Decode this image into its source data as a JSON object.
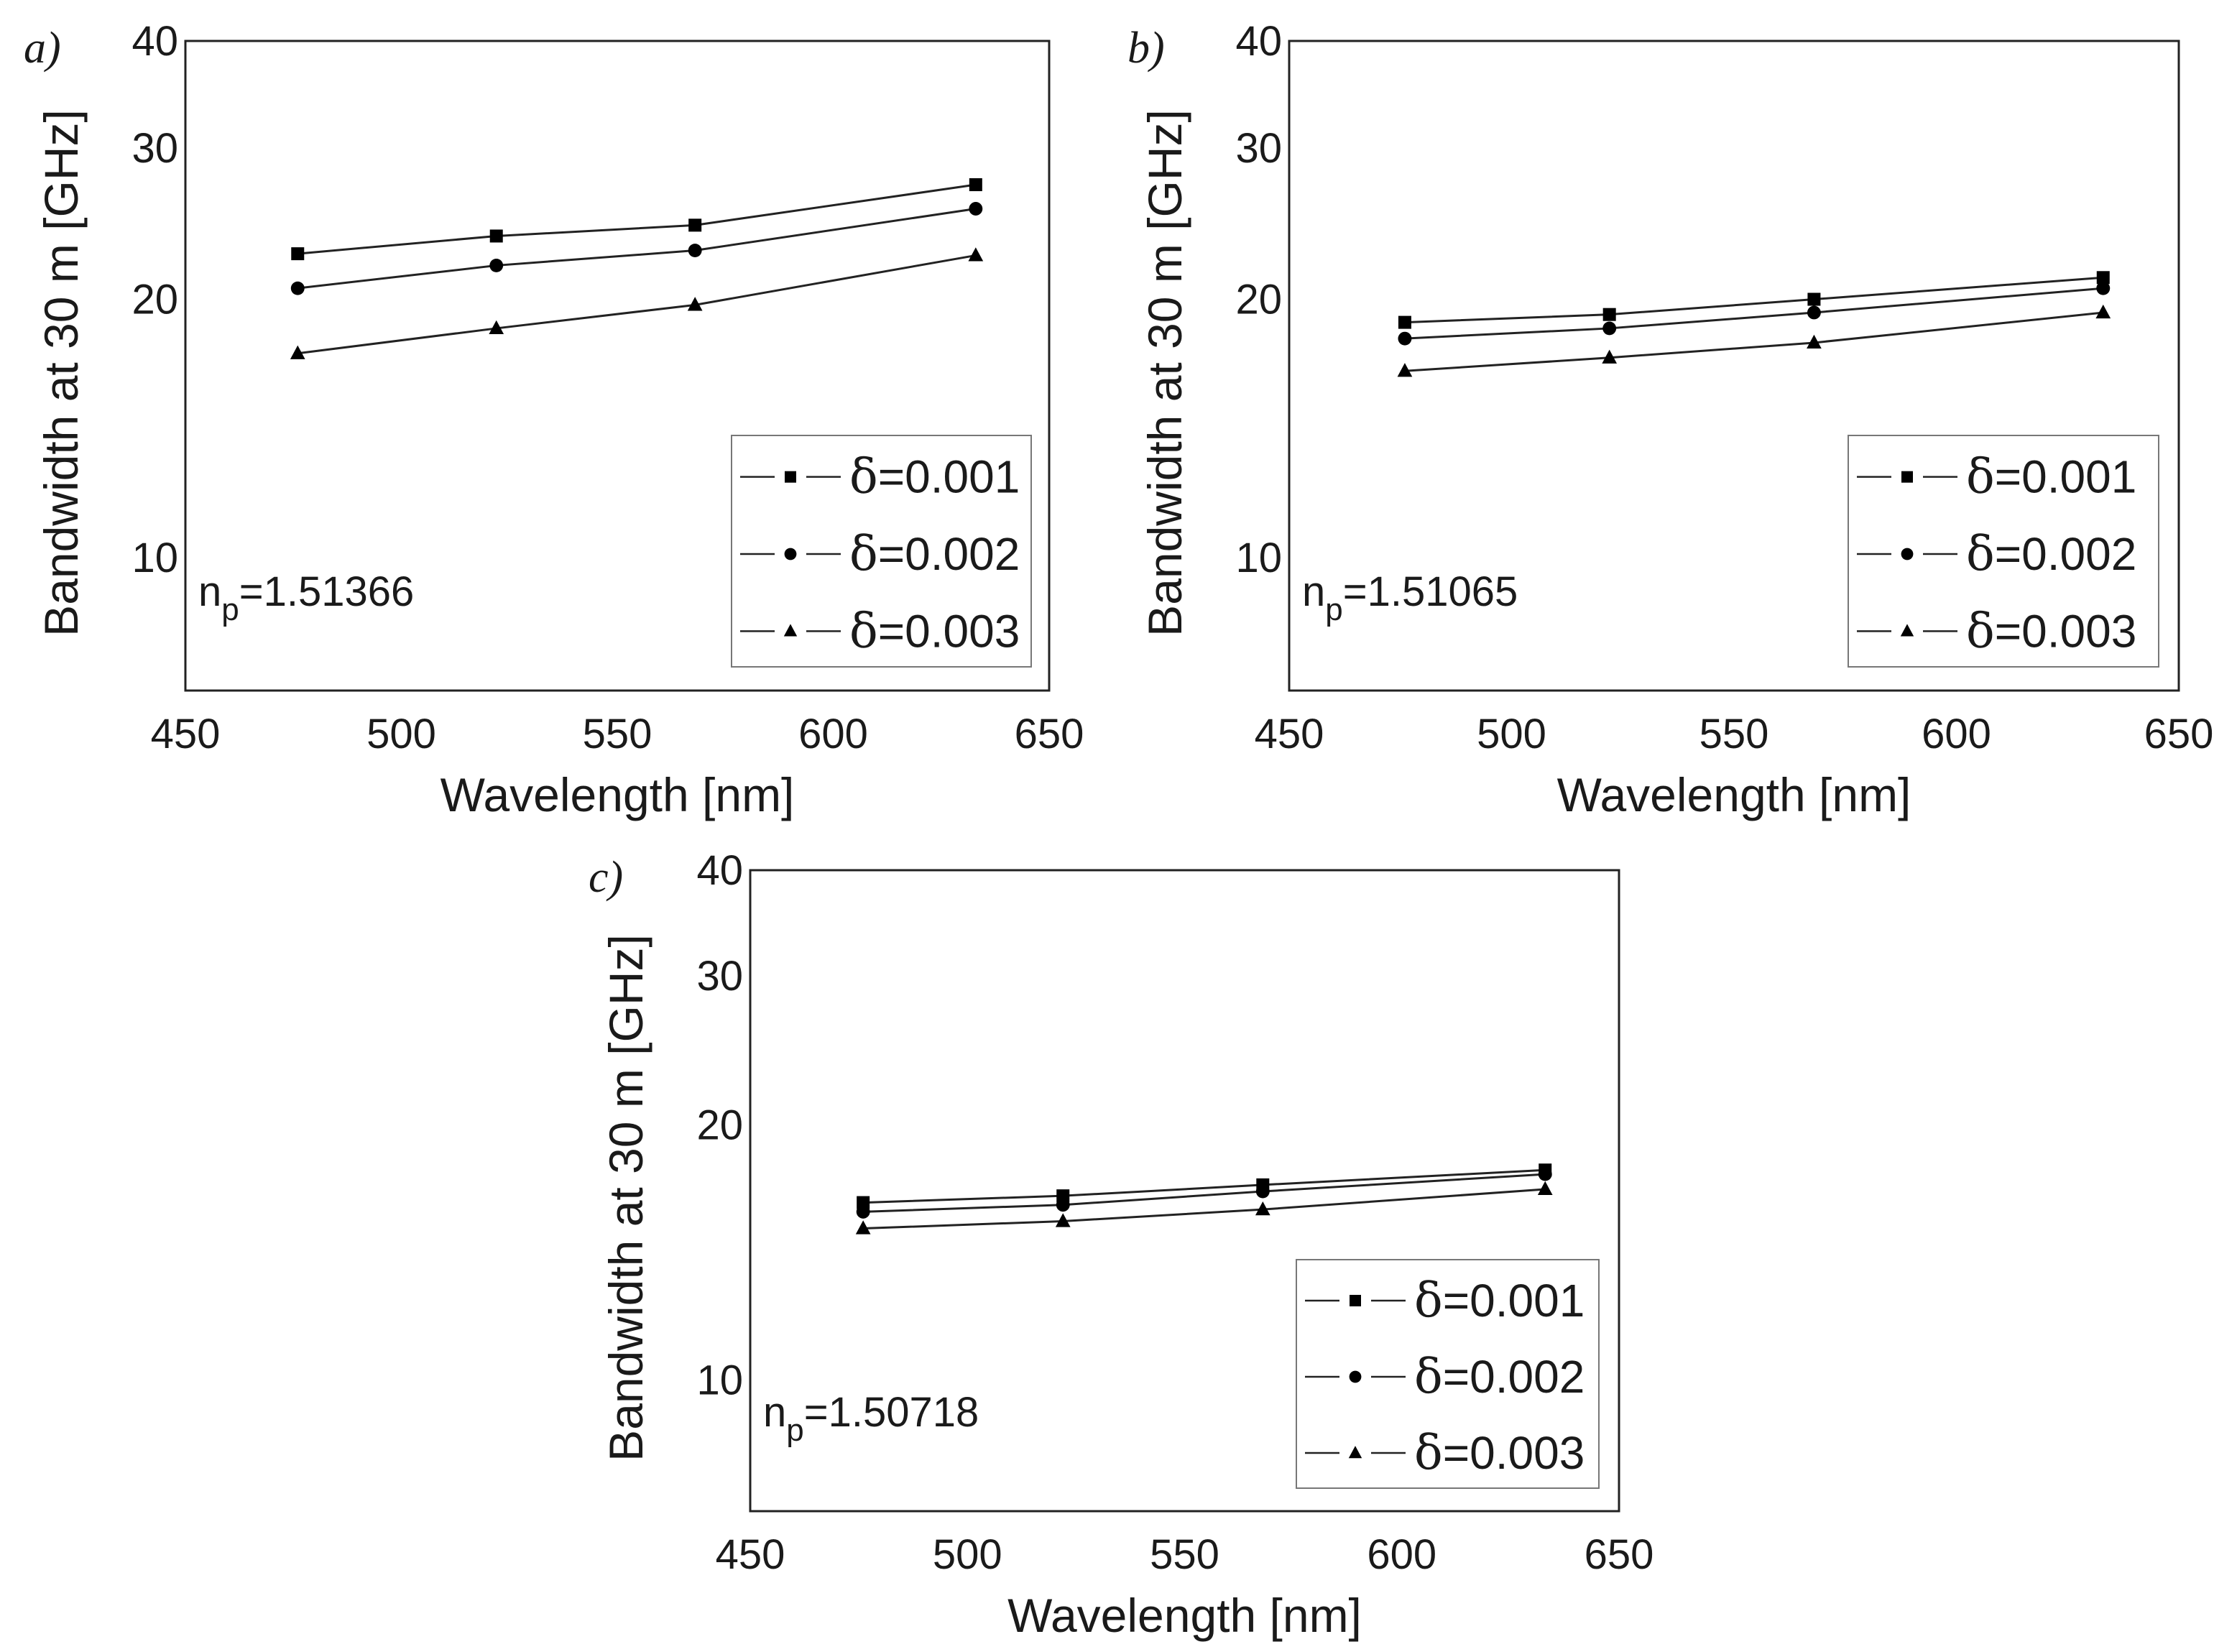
{
  "chart_data": [
    {
      "type": "line",
      "panel_label": "a)",
      "xlabel": "Wavelength [nm]",
      "ylabel": "Bandwidth at 30 m [GHz]",
      "xlim": [
        450,
        650
      ],
      "ylim": [
        7,
        40
      ],
      "yscale": "log",
      "x_ticks": [
        "450",
        "500",
        "550",
        "600",
        "650"
      ],
      "y_ticks": [
        "10",
        "20",
        "30",
        "40"
      ],
      "annotation": {
        "base": "n",
        "sub": "p",
        "value": "=1.51366"
      },
      "legend_position": "bottom-right",
      "x": [
        476,
        522,
        568,
        633
      ],
      "series": [
        {
          "name": "δ=0.001",
          "name_symbol": "δ",
          "name_value": "=0.001",
          "marker": "square",
          "values": [
            22.6,
            23.7,
            24.4,
            27.2
          ]
        },
        {
          "name": "δ=0.002",
          "name_symbol": "δ",
          "name_value": "=0.002",
          "marker": "circle",
          "values": [
            20.6,
            21.9,
            22.8,
            25.5
          ]
        },
        {
          "name": "δ=0.003",
          "name_symbol": "δ",
          "name_value": "=0.003",
          "marker": "triangle",
          "values": [
            17.3,
            18.5,
            19.7,
            22.5
          ]
        }
      ]
    },
    {
      "type": "line",
      "panel_label": "b)",
      "xlabel": "Wavelength [nm]",
      "ylabel": "Bandwidth at 30 m [GHz]",
      "xlim": [
        450,
        650
      ],
      "ylim": [
        7,
        40
      ],
      "yscale": "log",
      "x_ticks": [
        "450",
        "500",
        "550",
        "600",
        "650"
      ],
      "y_ticks": [
        "10",
        "20",
        "30",
        "40"
      ],
      "annotation": {
        "base": "n",
        "sub": "p",
        "value": "=1.51065"
      },
      "legend_position": "bottom-right",
      "x": [
        476,
        522,
        568,
        633
      ],
      "series": [
        {
          "name": "δ=0.001",
          "name_symbol": "δ",
          "name_value": "=0.001",
          "marker": "square",
          "values": [
            18.8,
            19.2,
            20.0,
            21.2
          ]
        },
        {
          "name": "δ=0.002",
          "name_symbol": "δ",
          "name_value": "=0.002",
          "marker": "circle",
          "values": [
            18.0,
            18.5,
            19.3,
            20.6
          ]
        },
        {
          "name": "δ=0.003",
          "name_symbol": "δ",
          "name_value": "=0.003",
          "marker": "triangle",
          "values": [
            16.5,
            17.1,
            17.8,
            19.3
          ]
        }
      ]
    },
    {
      "type": "line",
      "panel_label": "c)",
      "xlabel": "Wavelength [nm]",
      "ylabel": "Bandwidth at 30 m [GHz]",
      "xlim": [
        450,
        650
      ],
      "ylim": [
        7,
        40
      ],
      "yscale": "log",
      "x_ticks": [
        "450",
        "500",
        "550",
        "600",
        "650"
      ],
      "y_ticks": [
        "10",
        "20",
        "30",
        "40"
      ],
      "annotation": {
        "base": "n",
        "sub": "p",
        "value": "=1.50718"
      },
      "legend_position": "bottom-right",
      "x": [
        476,
        522,
        568,
        633
      ],
      "series": [
        {
          "name": "δ=0.001",
          "name_symbol": "δ",
          "name_value": "=0.001",
          "marker": "square",
          "values": [
            16.2,
            16.5,
            17.0,
            17.7
          ]
        },
        {
          "name": "δ=0.002",
          "name_symbol": "δ",
          "name_value": "=0.002",
          "marker": "circle",
          "values": [
            15.8,
            16.1,
            16.7,
            17.5
          ]
        },
        {
          "name": "δ=0.003",
          "name_symbol": "δ",
          "name_value": "=0.003",
          "marker": "triangle",
          "values": [
            15.1,
            15.4,
            15.9,
            16.8
          ]
        }
      ]
    }
  ]
}
